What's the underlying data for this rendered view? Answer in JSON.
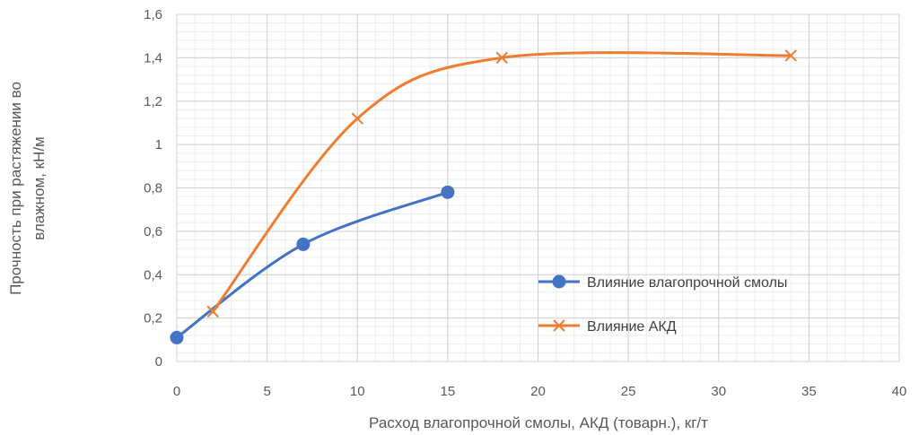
{
  "chart_data": {
    "type": "scatter",
    "xlabel": "Расход влагопрочной смолы, АКД (товарн.), кг/т",
    "ylabel_lines": [
      "Прочность при растяжении во",
      "влажном, кН/м"
    ],
    "xlim": [
      0,
      40
    ],
    "ylim": [
      0,
      1.6
    ],
    "x_ticks": [
      0,
      5,
      10,
      15,
      20,
      25,
      30,
      35,
      40
    ],
    "x_tick_labels": [
      "0",
      "5",
      "10",
      "15",
      "20",
      "25",
      "30",
      "35",
      "40"
    ],
    "y_ticks": [
      0,
      0.2,
      0.4,
      0.6,
      0.8,
      1.0,
      1.2,
      1.4,
      1.6
    ],
    "y_tick_labels": [
      "0",
      "0,2",
      "0,4",
      "0,6",
      "0,8",
      "1",
      "1,2",
      "1,4",
      "1,6"
    ],
    "grid": true,
    "minor_grid": true,
    "legend_position": "right",
    "series": [
      {
        "name": "Влияние влагопрочной смолы",
        "color": "#4472C4",
        "marker": "circle",
        "smooth": true,
        "points": [
          [
            0,
            0.11
          ],
          [
            7,
            0.54
          ],
          [
            15,
            0.78
          ]
        ]
      },
      {
        "name": "Влияние АКД",
        "color": "#ED7D31",
        "marker": "x",
        "smooth": true,
        "points": [
          [
            2,
            0.23
          ],
          [
            10,
            1.12
          ],
          [
            18,
            1.4
          ],
          [
            34,
            1.41
          ]
        ]
      }
    ]
  }
}
